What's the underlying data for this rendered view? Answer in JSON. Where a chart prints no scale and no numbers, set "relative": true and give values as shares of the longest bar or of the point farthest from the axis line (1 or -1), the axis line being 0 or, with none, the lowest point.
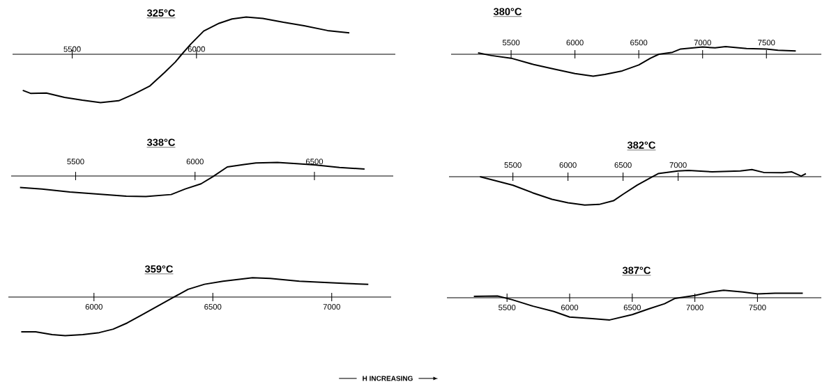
{
  "chart_data": [
    {
      "type": "line",
      "title": "325°C",
      "relative": true,
      "xlim": [
        5260,
        6800
      ],
      "xticks": [
        5500,
        6000
      ],
      "color": "#000000",
      "x": [
        5301,
        5334,
        5396,
        5469,
        5541,
        5614,
        5687,
        5749,
        5811,
        5873,
        5915,
        5941,
        5977,
        6029,
        6091,
        6143,
        6200,
        6267,
        6350,
        6433,
        6527,
        6615
      ],
      "values": [
        -0.745,
        -0.81,
        -0.8,
        -0.89,
        -0.95,
        -1.0,
        -0.96,
        -0.82,
        -0.66,
        -0.37,
        -0.16,
        0,
        0.21,
        0.48,
        0.64,
        0.73,
        0.77,
        0.74,
        0.66,
        0.59,
        0.49,
        0.44
      ]
    },
    {
      "type": "line",
      "title": "380°C",
      "relative": true,
      "xlim": [
        5030,
        7930
      ],
      "xticks": [
        5500,
        6000,
        6500,
        7000,
        7500
      ],
      "color": "#000000",
      "x": [
        5241,
        5347,
        5500,
        5677,
        5842,
        6000,
        6143,
        6234,
        6370,
        6500,
        6592,
        6657,
        6764,
        6828,
        7000,
        7098,
        7180,
        7344,
        7500,
        7590,
        7730
      ],
      "values": [
        0.06,
        -0.06,
        -0.18,
        -0.47,
        -0.68,
        -0.88,
        -1.0,
        -0.92,
        -0.76,
        -0.49,
        -0.18,
        0,
        0.09,
        0.24,
        0.33,
        0.29,
        0.35,
        0.26,
        0.24,
        0.18,
        0.15
      ]
    },
    {
      "type": "line",
      "title": "338°C",
      "relative": true,
      "xlim": [
        5230,
        6830
      ],
      "xticks": [
        5500,
        6000,
        6500
      ],
      "color": "#000000",
      "x": [
        5267,
        5359,
        5476,
        5594,
        5712,
        5794,
        5900,
        5959,
        6025,
        6075,
        6135,
        6205,
        6255,
        6345,
        6425,
        6500,
        6605,
        6710
      ],
      "values": [
        -0.56,
        -0.63,
        -0.78,
        -0.88,
        -0.98,
        -1.0,
        -0.9,
        -0.63,
        -0.38,
        -0.03,
        0.44,
        0.56,
        0.63,
        0.66,
        0.6,
        0.54,
        0.41,
        0.34
      ]
    },
    {
      "type": "line",
      "title": "382°C",
      "relative": true,
      "xlim": [
        4920,
        8300
      ],
      "xticks": [
        5500,
        6000,
        6500,
        7000
      ],
      "color": "#000000",
      "x": [
        5201,
        5360,
        5500,
        5680,
        5855,
        6000,
        6152,
        6283,
        6413,
        6500,
        6628,
        6734,
        6819,
        7000,
        7096,
        7309,
        7564,
        7670,
        7777,
        7947,
        8032,
        8117,
        8160
      ],
      "values": [
        0,
        -0.16,
        -0.3,
        -0.57,
        -0.8,
        -0.92,
        -1.0,
        -0.98,
        -0.85,
        -0.62,
        -0.3,
        -0.07,
        0.11,
        0.2,
        0.22,
        0.17,
        0.2,
        0.25,
        0.15,
        0.14,
        0.17,
        0.02,
        0.11
      ]
    },
    {
      "type": "line",
      "title": "359°C",
      "relative": true,
      "xlim": [
        5640,
        7250
      ],
      "xticks": [
        6000,
        6500,
        7000
      ],
      "color": "#000000",
      "x": [
        5694,
        5755,
        5824,
        5879,
        5953,
        6022,
        6081,
        6140,
        6199,
        6278,
        6337,
        6396,
        6465,
        6543,
        6667,
        6741,
        6864,
        7000,
        7062,
        7154
      ],
      "values": [
        -0.9,
        -0.9,
        -0.97,
        -1.0,
        -0.97,
        -0.92,
        -0.83,
        -0.67,
        -0.47,
        -0.2,
        0,
        0.2,
        0.33,
        0.41,
        0.5,
        0.48,
        0.41,
        0.37,
        0.35,
        0.33
      ]
    },
    {
      "type": "line",
      "title": "387°C",
      "relative": true,
      "xlim": [
        5020,
        8010
      ],
      "xticks": [
        5500,
        6000,
        6500,
        7000,
        7500
      ],
      "color": "#000000",
      "x": [
        5235,
        5424,
        5542,
        5708,
        5874,
        6000,
        6180,
        6320,
        6500,
        6632,
        6758,
        6842,
        7000,
        7128,
        7230,
        7384,
        7500,
        7640,
        7862
      ],
      "values": [
        0.06,
        0.08,
        -0.09,
        -0.38,
        -0.62,
        -0.87,
        -0.94,
        -1.0,
        -0.76,
        -0.5,
        -0.27,
        -0.03,
        0.1,
        0.26,
        0.34,
        0.26,
        0.17,
        0.2,
        0.2
      ],
      "annotations": [
        "H  INCREASING"
      ]
    }
  ]
}
